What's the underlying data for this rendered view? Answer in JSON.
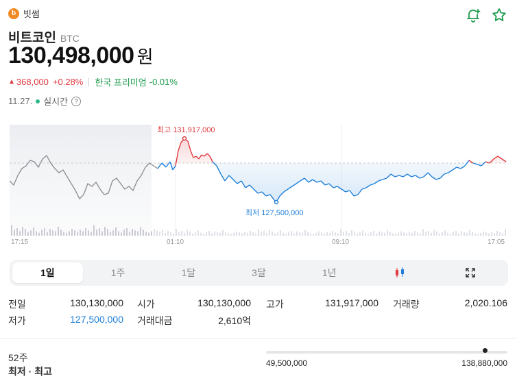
{
  "exchange": {
    "logo_letter": "b",
    "name": "빗썸"
  },
  "top_icons": [
    "bell-plus-icon",
    "star-icon"
  ],
  "coin": {
    "name": "비트코인",
    "symbol": "BTC"
  },
  "price": {
    "value": "130,498,000",
    "unit": "원"
  },
  "change": {
    "arrow": "▲",
    "amount": "368,000",
    "percent": "+0.28%",
    "premium_label": "한국 프리미엄",
    "premium_value": "-0.01%"
  },
  "timestamp": {
    "date": "11.27.",
    "label": "실시간",
    "help": "?"
  },
  "chart_data": {
    "type": "line",
    "x_tick_labels": [
      "17:15",
      "01:10",
      "09:10",
      "17:05"
    ],
    "high_label": "최고 131,917,000",
    "low_label": "최저 127,500,000",
    "high": 131917000,
    "low": 127500000,
    "reference": 130130000,
    "colors": {
      "past": "#8a8a90",
      "down": "#1e7fd9",
      "up": "#e0393e"
    }
  },
  "tabs": [
    "1일",
    "1주",
    "1달",
    "3달",
    "1년"
  ],
  "tab_icons": [
    "candlestick-icon",
    "expand-icon"
  ],
  "stats": {
    "prev_close_label": "전일",
    "prev_close": "130,130,000",
    "open_label": "시가",
    "open": "130,130,000",
    "high_label": "고가",
    "high": "131,917,000",
    "volume_label": "거래량",
    "volume": "2,020.106",
    "low_label": "저가",
    "low": "127,500,000",
    "turnover_label": "거래대금",
    "turnover": "2,610억"
  },
  "range52": {
    "title": "52주",
    "subtitle": "최저 · 최고",
    "min": "49,500,000",
    "max": "138,880,000",
    "current_fraction": 0.906
  }
}
